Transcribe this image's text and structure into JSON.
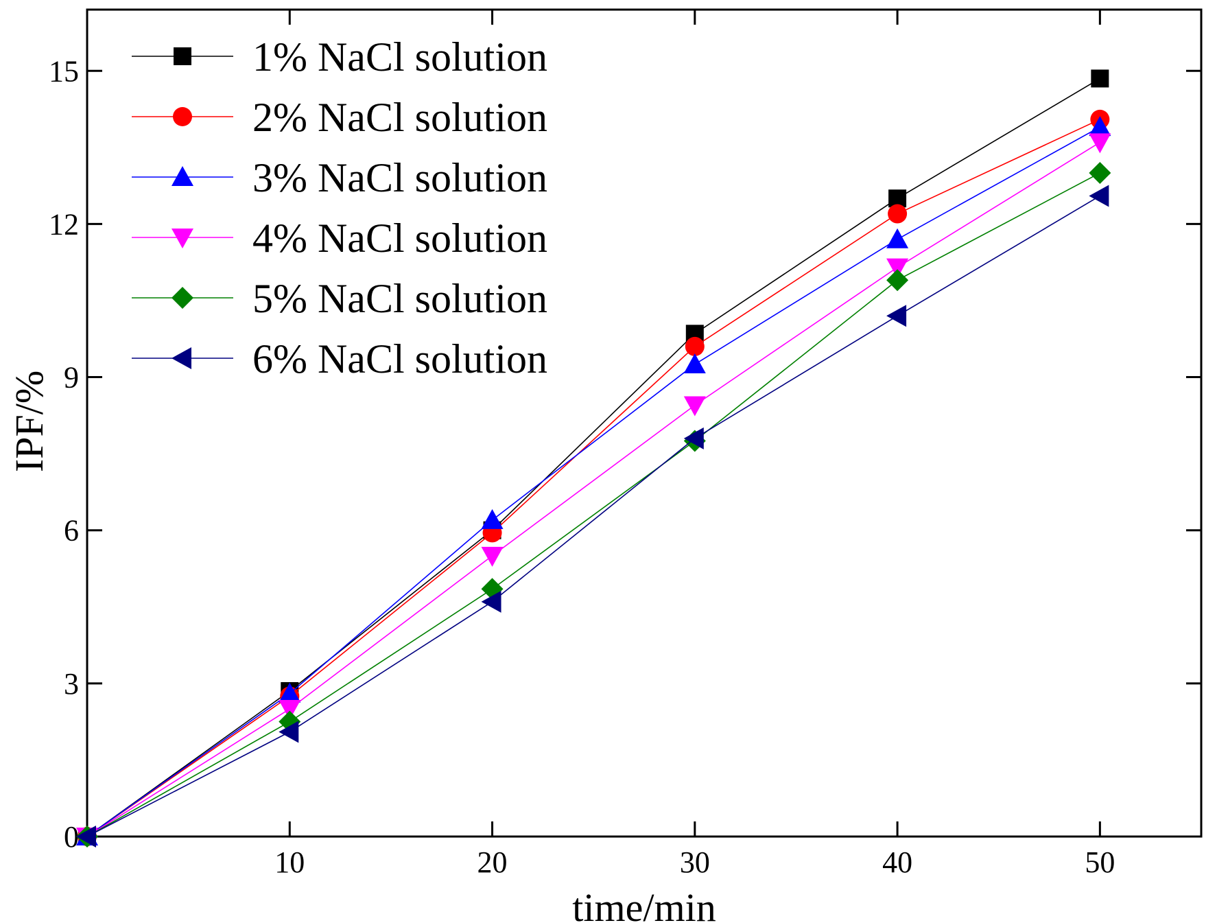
{
  "chart_data": {
    "type": "line",
    "title": "",
    "xlabel": "time/min",
    "ylabel": "IPF/%",
    "xlim": [
      0,
      55
    ],
    "ylim": [
      0,
      16.2
    ],
    "xticks": [
      10,
      20,
      30,
      40,
      50
    ],
    "yticks": [
      0,
      3,
      6,
      9,
      12,
      15
    ],
    "legend_position": "top-left",
    "x": [
      0,
      10,
      20,
      30,
      40,
      50
    ],
    "series": [
      {
        "name": "1% NaCl solution",
        "color": "#000000",
        "marker": "square",
        "values": [
          0,
          2.85,
          6.0,
          9.85,
          12.5,
          14.85
        ]
      },
      {
        "name": "2% NaCl solution",
        "color": "#ff0000",
        "marker": "circle",
        "values": [
          0,
          2.75,
          5.95,
          9.6,
          12.2,
          14.05
        ]
      },
      {
        "name": "3% NaCl solution",
        "color": "#0000ff",
        "marker": "triangle-up",
        "values": [
          0,
          2.8,
          6.2,
          9.25,
          11.7,
          13.9
        ]
      },
      {
        "name": "4% NaCl solution",
        "color": "#ff00ff",
        "marker": "triangle-down",
        "values": [
          0,
          2.5,
          5.5,
          8.45,
          11.15,
          13.6
        ]
      },
      {
        "name": "5% NaCl solution",
        "color": "#008000",
        "marker": "diamond",
        "values": [
          0,
          2.25,
          4.85,
          7.75,
          10.9,
          13.0
        ]
      },
      {
        "name": "6% NaCl solution",
        "color": "#000080",
        "marker": "triangle-left",
        "values": [
          0,
          2.05,
          4.6,
          7.8,
          10.2,
          12.55
        ]
      }
    ]
  }
}
